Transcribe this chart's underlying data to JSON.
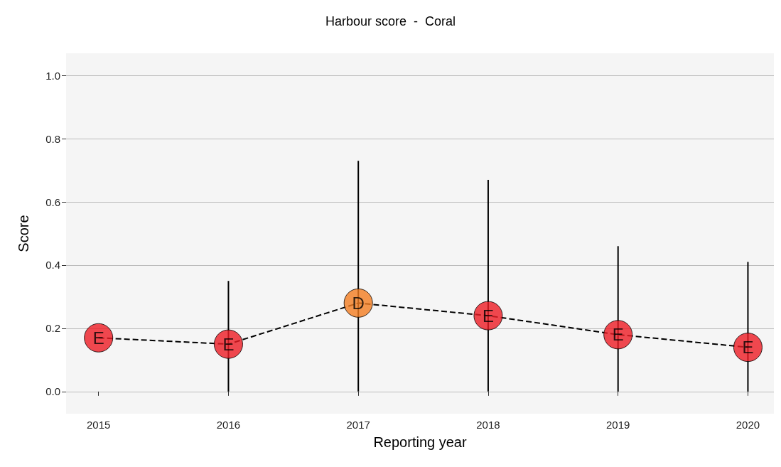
{
  "chart_data": {
    "type": "line",
    "title": "Harbour score  -  Coral",
    "xlabel": "Reporting year",
    "ylabel": "Score",
    "x": [
      2015,
      2016,
      2017,
      2018,
      2019,
      2020
    ],
    "series": [
      {
        "color": "#000000",
        "values": [
          0.17,
          0.15,
          0.28,
          0.24,
          0.18,
          0.14
        ],
        "colors": [
          "#ee1c24",
          "#ee1c24",
          "#f47d20",
          "#ee1c24",
          "#ee1c24",
          "#ee1c24"
        ],
        "value_labels": [
          "E",
          "E",
          "D",
          "E",
          "E",
          "E"
        ],
        "errors": [
          null,
          [
            0,
            0.35
          ],
          [
            0,
            0.73
          ],
          [
            0,
            0.67
          ],
          [
            0,
            0.46
          ],
          [
            0,
            0.41
          ]
        ]
      }
    ],
    "xlim": [
      2014.75,
      2020.2
    ],
    "xticks": [
      2015,
      2016,
      2017,
      2018,
      2019,
      2020
    ],
    "ylim": [
      -0.07,
      1.07
    ],
    "yticks": [
      {
        "value": 0,
        "label": "0.0"
      },
      {
        "value": 0.2,
        "label": "0.2"
      },
      {
        "value": 0.4,
        "label": "0.4"
      },
      {
        "value": 0.6,
        "label": "0.6"
      },
      {
        "value": 0.8,
        "label": "0.8"
      },
      {
        "value": 1,
        "label": "1.0"
      }
    ],
    "grid": "y",
    "marker": "circle",
    "line_style": "dashed"
  }
}
